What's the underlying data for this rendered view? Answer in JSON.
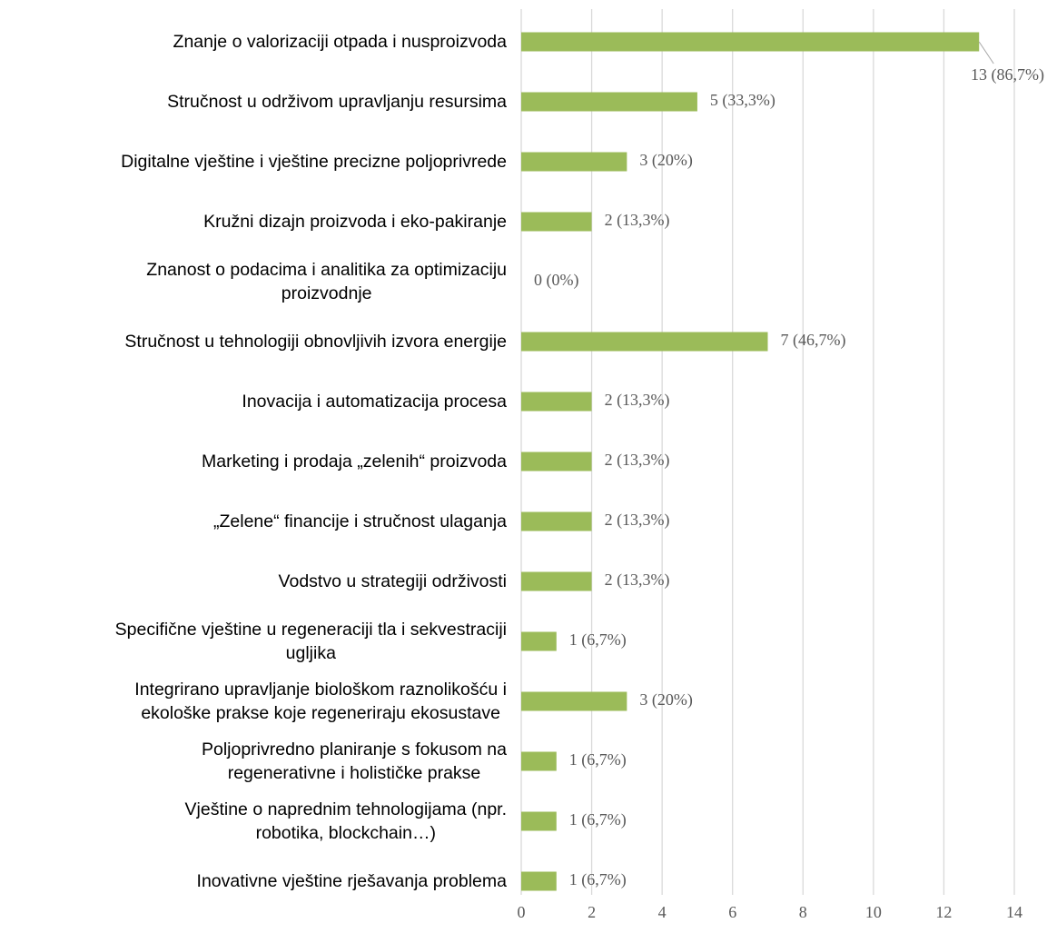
{
  "chart_data": {
    "type": "bar",
    "orientation": "horizontal",
    "categories": [
      "Znanje o valorizaciji otpada i nusproizvoda",
      "Stručnost u održivom upravljanju resursima",
      "Digitalne vještine i vještine precizne poljoprivrede",
      "Kružni dizajn proizvoda i eko-pakiranje",
      "Znanost o podacima i analitika za optimizaciju\nproizvodnje",
      "Stručnost u tehnologiji obnovljivih izvora energije",
      "Inovacija i automatizacija procesa",
      "Marketing i prodaja „zelenih“ proizvoda",
      "„Zelene“ financije i stručnost ulaganja",
      "Vodstvo u strategiji održivosti",
      "Specifične vještine u regeneraciji tla i sekvestraciji\nugljika",
      "Integrirano upravljanje biološkom raznolikošću i\nekološke prakse koje regeneriraju ekosustave",
      "Poljoprivredno planiranje s fokusom na\nregenerativne i holističke prakse",
      "Vještine o naprednim tehnologijama (npr.\nrobotika, blockchain…)",
      "Inovativne vještine rješavanja problema"
    ],
    "values": [
      13,
      5,
      3,
      2,
      0,
      7,
      2,
      2,
      2,
      2,
      1,
      3,
      1,
      1,
      1
    ],
    "value_labels": [
      "13 (86,7%)",
      "5 (33,3%)",
      "3 (20%)",
      "2 (13,3%)",
      "0 (0%)",
      "7 (46,7%)",
      "2 (13,3%)",
      "2 (13,3%)",
      "2 (13,3%)",
      "2 (13,3%)",
      "1 (6,7%)",
      "3 (20%)",
      "1 (6,7%)",
      "1 (6,7%)",
      "1 (6,7%)"
    ],
    "color": "#9bbb59",
    "xlim": [
      0,
      14
    ],
    "xticks": [
      0,
      2,
      4,
      6,
      8,
      10,
      12,
      14
    ],
    "grid": true
  }
}
